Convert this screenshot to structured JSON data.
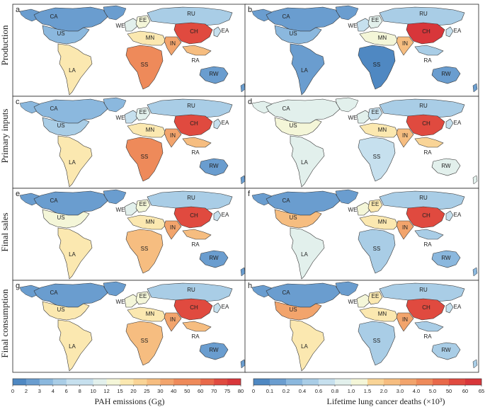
{
  "row_labels": [
    "Production",
    "Primary inputs",
    "Final sales",
    "Final consumption"
  ],
  "panel_letters": [
    "a",
    "b",
    "c",
    "d",
    "e",
    "f",
    "g",
    "h"
  ],
  "regions": [
    "CA",
    "US",
    "LA",
    "WE",
    "EE",
    "RU",
    "MN",
    "SS",
    "IN",
    "CH",
    "EA",
    "RA",
    "RW"
  ],
  "legend_left": {
    "title": "PAH emissions (Gg)",
    "ticks": [
      "0",
      "2",
      "3",
      "4",
      "6",
      "8",
      "10",
      "12",
      "15",
      "20",
      "25",
      "30",
      "40",
      "50",
      "60",
      "70",
      "75",
      "80"
    ]
  },
  "legend_right": {
    "title": "Lifetime lung cancer deaths (×10³)",
    "ticks": [
      "0",
      "0.1",
      "0.2",
      "0.4",
      "0.6",
      "0.8",
      "1.0",
      "1.5",
      "2.0",
      "3.0",
      "4.0",
      "5.0",
      "50",
      "60",
      "65"
    ]
  },
  "palette": [
    "#4f88c2",
    "#6a9dcf",
    "#8bb8de",
    "#a9cde6",
    "#c6e0ee",
    "#e2f0ec",
    "#f4f6d8",
    "#fbe8b0",
    "#f9d496",
    "#f6bd80",
    "#f2a46c",
    "#ee8a5a",
    "#e8694a",
    "#e04a3f",
    "#d8363a"
  ],
  "colors": {
    "ocean": "#ffffff",
    "border": "#222222",
    "antarctic_ice": "#4f88c2"
  },
  "panels": [
    {
      "letter": "a",
      "levels": {
        "CA": 1,
        "US": 2,
        "LA": 7,
        "WE": 5,
        "EE": 6,
        "RU": 3,
        "MN": 7,
        "SS": 11,
        "IN": 10,
        "CH": 13,
        "EA": 4,
        "RA": 9,
        "RW": 1
      }
    },
    {
      "letter": "b",
      "levels": {
        "CA": 1,
        "US": 2,
        "LA": 1,
        "WE": 4,
        "EE": 5,
        "RU": 3,
        "MN": 6,
        "SS": 0,
        "IN": 9,
        "CH": 14,
        "EA": 4,
        "RA": 3,
        "RW": 1
      }
    },
    {
      "letter": "c",
      "levels": {
        "CA": 2,
        "US": 3,
        "LA": 7,
        "WE": 4,
        "EE": 5,
        "RU": 3,
        "MN": 7,
        "SS": 11,
        "IN": 10,
        "CH": 13,
        "EA": 4,
        "RA": 9,
        "RW": 1
      }
    },
    {
      "letter": "d",
      "levels": {
        "CA": 5,
        "US": 6,
        "LA": 5,
        "WE": 5,
        "EE": 4,
        "RU": 3,
        "MN": 7,
        "SS": 4,
        "IN": 9,
        "CH": 13,
        "EA": 4,
        "RA": 8,
        "RW": 5
      }
    },
    {
      "letter": "e",
      "levels": {
        "CA": 1,
        "US": 6,
        "LA": 7,
        "WE": 5,
        "EE": 6,
        "RU": 3,
        "MN": 7,
        "SS": 9,
        "IN": 10,
        "CH": 13,
        "EA": 4,
        "RA": 9,
        "RW": 1
      }
    },
    {
      "letter": "f",
      "levels": {
        "CA": 1,
        "US": 9,
        "LA": 5,
        "WE": 6,
        "EE": 7,
        "RU": 3,
        "MN": 7,
        "SS": 3,
        "IN": 10,
        "CH": 13,
        "EA": 4,
        "RA": 3,
        "RW": 2
      }
    },
    {
      "letter": "g",
      "levels": {
        "CA": 1,
        "US": 7,
        "LA": 7,
        "WE": 6,
        "EE": 6,
        "RU": 3,
        "MN": 7,
        "SS": 9,
        "IN": 10,
        "CH": 13,
        "EA": 4,
        "RA": 9,
        "RW": 1
      }
    },
    {
      "letter": "h",
      "levels": {
        "CA": 1,
        "US": 10,
        "LA": 7,
        "WE": 6,
        "EE": 7,
        "RU": 3,
        "MN": 7,
        "SS": 3,
        "IN": 10,
        "CH": 13,
        "EA": 4,
        "RA": 3,
        "RW": 3
      }
    }
  ]
}
